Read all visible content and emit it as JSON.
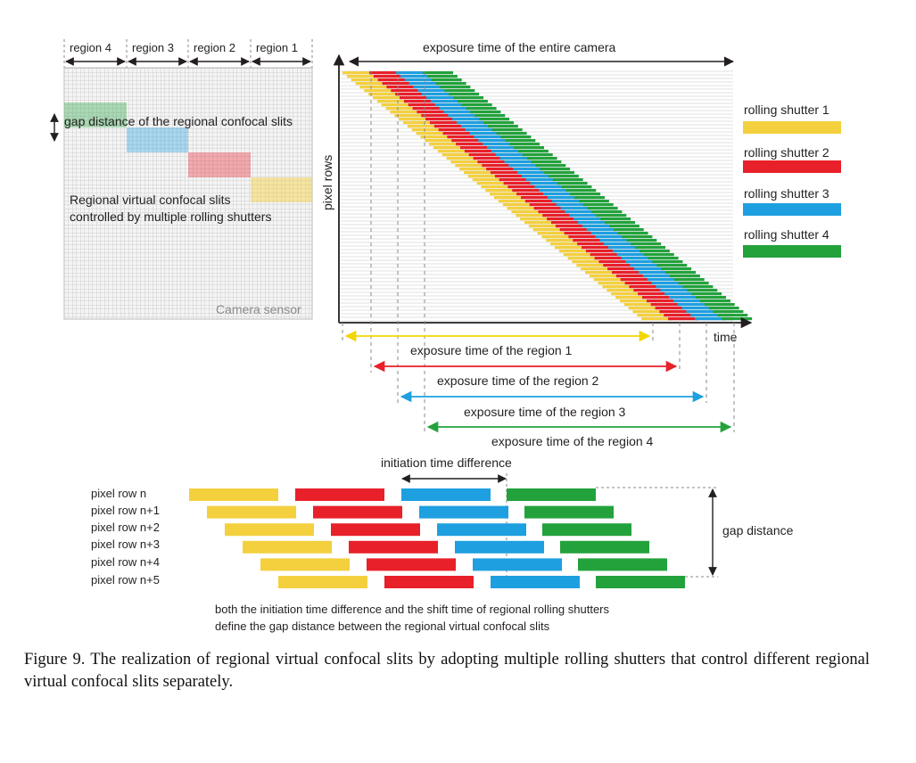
{
  "sensor": {
    "regions": [
      "region 4",
      "region 3",
      "region 2",
      "region 1"
    ],
    "gap_label": "gap distance of the regional confocal slits",
    "slit_label_line1": "Regional virtual confocal slits",
    "slit_label_line2": "controlled by multiple rolling shutters",
    "sensor_label": "Camera sensor"
  },
  "timing": {
    "exposure_entire": "exposure time of the entire camera",
    "y_axis": "pixel rows",
    "x_axis": "time",
    "region_exposures": [
      "exposure time of the region 1",
      "exposure time of the region 2",
      "exposure time of the region 3",
      "exposure time of the region 4"
    ]
  },
  "legend": [
    {
      "label": "rolling shutter 1",
      "color": "#f4d03f"
    },
    {
      "label": "rolling shutter 2",
      "color": "#e8202a"
    },
    {
      "label": "rolling shutter 3",
      "color": "#1e9fe0"
    },
    {
      "label": "rolling shutter 4",
      "color": "#23a23c"
    }
  ],
  "bottom": {
    "initiation_label": "initiation time difference",
    "rows": [
      "pixel row n",
      "pixel row n+1",
      "pixel row n+2",
      "pixel row n+3",
      "pixel row n+4",
      "pixel row n+5"
    ],
    "gap_label": "gap distance",
    "note_line1": "both the initiation time difference and the shift time of regional rolling shutters",
    "note_line2": "define the gap distance between the regional virtual confocal slits"
  },
  "caption": "Figure 9. The realization of regional virtual confocal slits by adopting multiple rolling shutters that control different regional virtual confocal slits separately."
}
